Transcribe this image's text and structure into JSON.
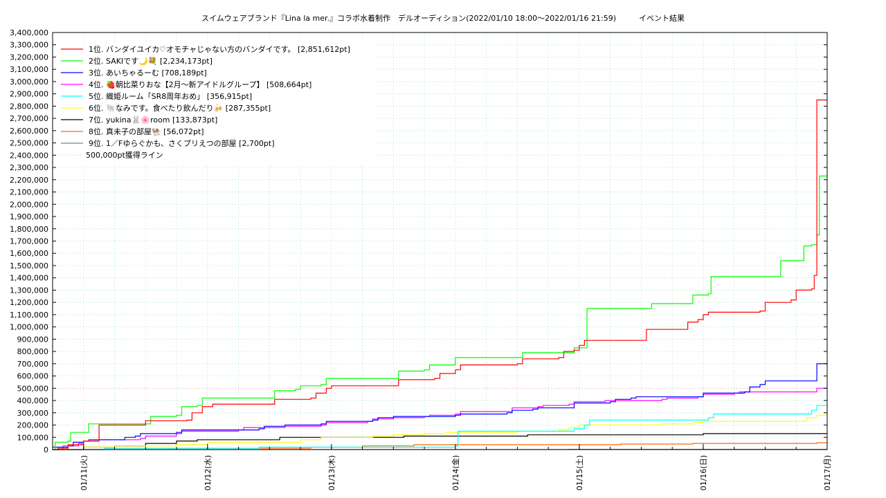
{
  "chart_data": {
    "type": "line",
    "title": "スイムウェアブランド『Lina la mer.』コラボ水着制作　デルオーディション(2022/01/10 18:00〜2022/01/16 21:59)　　　イベント結果",
    "xlabel": "",
    "ylabel": "",
    "ylim": [
      0,
      3400000
    ],
    "yticks": [
      "0",
      "100,000",
      "200,000",
      "300,000",
      "400,000",
      "500,000",
      "600,000",
      "700,000",
      "800,000",
      "900,000",
      "1,000,000",
      "1,100,000",
      "1,200,000",
      "1,300,000",
      "1,400,000",
      "1,500,000",
      "1,600,000",
      "1,700,000",
      "1,800,000",
      "1,900,000",
      "2,000,000",
      "2,100,000",
      "2,200,000",
      "2,300,000",
      "2,400,000",
      "2,500,000",
      "2,600,000",
      "2,700,000",
      "2,800,000",
      "2,900,000",
      "3,000,000",
      "3,100,000",
      "3,200,000",
      "3,300,000",
      "3,400,000"
    ],
    "xlim": [
      "01/10 18:00",
      "01/17 00:00"
    ],
    "xticks": [
      {
        "t": 6,
        "label": "01/11(火)"
      },
      {
        "t": 30,
        "label": "01/12(水)"
      },
      {
        "t": 54,
        "label": "01/13(木)"
      },
      {
        "t": 78,
        "label": "01/14(金)"
      },
      {
        "t": 102,
        "label": "01/15(土)"
      },
      {
        "t": 126,
        "label": "01/16(日)"
      },
      {
        "t": 150,
        "label": "01/17(月)"
      }
    ],
    "grid": true,
    "legend_position": "top-left",
    "reference_line": {
      "label": "500,000pt獲得ライン",
      "value": 500000,
      "color": "#ff9999"
    },
    "series": [
      {
        "name": "1位. バンダイユイカ♡オモチャじゃない方のバンダイです。 [2,851,612pt]",
        "color": "#ff0000",
        "points": [
          [
            0,
            0
          ],
          [
            1,
            10000
          ],
          [
            3,
            40000
          ],
          [
            6,
            70000
          ],
          [
            9,
            200000
          ],
          [
            18,
            235000
          ],
          [
            26,
            240000
          ],
          [
            27,
            300000
          ],
          [
            29,
            350000
          ],
          [
            31,
            370000
          ],
          [
            42,
            370000
          ],
          [
            43,
            410000
          ],
          [
            50,
            420000
          ],
          [
            51,
            460000
          ],
          [
            53,
            500000
          ],
          [
            54,
            520000
          ],
          [
            66,
            520000
          ],
          [
            67,
            570000
          ],
          [
            74,
            580000
          ],
          [
            75,
            620000
          ],
          [
            78,
            650000
          ],
          [
            79,
            690000
          ],
          [
            90,
            700000
          ],
          [
            91,
            740000
          ],
          [
            98,
            750000
          ],
          [
            99,
            800000
          ],
          [
            101,
            810000
          ],
          [
            102,
            850000
          ],
          [
            103,
            890000
          ],
          [
            114,
            890000
          ],
          [
            115,
            980000
          ],
          [
            122,
            980000
          ],
          [
            123,
            1040000
          ],
          [
            125,
            1060000
          ],
          [
            126,
            1100000
          ],
          [
            127,
            1120000
          ],
          [
            137,
            1130000
          ],
          [
            138,
            1200000
          ],
          [
            143,
            1220000
          ],
          [
            144,
            1300000
          ],
          [
            147,
            1310000
          ],
          [
            147.5,
            1420000
          ],
          [
            148,
            2850000
          ],
          [
            150,
            2851612
          ]
        ]
      },
      {
        "name": "2位. SAKIです🌙💐 [2,234,173pt]",
        "color": "#00ff00",
        "points": [
          [
            0,
            0
          ],
          [
            0.5,
            60000
          ],
          [
            3,
            70000
          ],
          [
            3.5,
            140000
          ],
          [
            6,
            140000
          ],
          [
            7,
            210000
          ],
          [
            18,
            210000
          ],
          [
            19,
            270000
          ],
          [
            24,
            280000
          ],
          [
            25,
            350000
          ],
          [
            28,
            360000
          ],
          [
            29,
            420000
          ],
          [
            42,
            420000
          ],
          [
            43,
            480000
          ],
          [
            47,
            490000
          ],
          [
            48,
            520000
          ],
          [
            52,
            530000
          ],
          [
            53,
            580000
          ],
          [
            66,
            580000
          ],
          [
            67,
            640000
          ],
          [
            72,
            650000
          ],
          [
            73,
            690000
          ],
          [
            77,
            690000
          ],
          [
            78,
            750000
          ],
          [
            90,
            750000
          ],
          [
            91,
            790000
          ],
          [
            100,
            790000
          ],
          [
            101,
            830000
          ],
          [
            103,
            830000
          ],
          [
            103.5,
            1150000
          ],
          [
            115,
            1150000
          ],
          [
            116,
            1190000
          ],
          [
            123,
            1190000
          ],
          [
            124,
            1260000
          ],
          [
            127,
            1270000
          ],
          [
            127.5,
            1410000
          ],
          [
            140,
            1410000
          ],
          [
            141,
            1540000
          ],
          [
            145,
            1540000
          ],
          [
            145.5,
            1660000
          ],
          [
            147,
            1670000
          ],
          [
            148,
            1750000
          ],
          [
            148.5,
            2230000
          ],
          [
            150,
            2234173
          ]
        ]
      },
      {
        "name": "3位. あいちゃるーむ [708,189pt]",
        "color": "#0000ff",
        "points": [
          [
            0,
            20000
          ],
          [
            3,
            30000
          ],
          [
            4,
            60000
          ],
          [
            6,
            70000
          ],
          [
            7,
            80000
          ],
          [
            13,
            80000
          ],
          [
            14,
            100000
          ],
          [
            16,
            110000
          ],
          [
            17,
            130000
          ],
          [
            24,
            140000
          ],
          [
            25,
            160000
          ],
          [
            40,
            170000
          ],
          [
            41,
            190000
          ],
          [
            45,
            200000
          ],
          [
            52,
            210000
          ],
          [
            53,
            230000
          ],
          [
            62,
            240000
          ],
          [
            63,
            260000
          ],
          [
            66,
            270000
          ],
          [
            78,
            280000
          ],
          [
            79,
            290000
          ],
          [
            88,
            300000
          ],
          [
            89,
            320000
          ],
          [
            93,
            330000
          ],
          [
            94,
            340000
          ],
          [
            100,
            340000
          ],
          [
            101,
            380000
          ],
          [
            108,
            390000
          ],
          [
            109,
            410000
          ],
          [
            112,
            420000
          ],
          [
            113,
            430000
          ],
          [
            125,
            430000
          ],
          [
            126,
            460000
          ],
          [
            134,
            470000
          ],
          [
            135,
            510000
          ],
          [
            137,
            530000
          ],
          [
            138,
            560000
          ],
          [
            147,
            560000
          ],
          [
            148,
            700000
          ],
          [
            150,
            708189
          ]
        ]
      },
      {
        "name": "4位. 🍓朝比菜りおな【2月〜新アイドルグループ】 [508,664pt]",
        "color": "#ff00ff",
        "points": [
          [
            0,
            0
          ],
          [
            2,
            30000
          ],
          [
            5,
            50000
          ],
          [
            6,
            70000
          ],
          [
            9,
            80000
          ],
          [
            17,
            90000
          ],
          [
            18,
            110000
          ],
          [
            24,
            130000
          ],
          [
            25,
            150000
          ],
          [
            36,
            160000
          ],
          [
            37,
            180000
          ],
          [
            45,
            190000
          ],
          [
            52,
            200000
          ],
          [
            53,
            220000
          ],
          [
            61,
            230000
          ],
          [
            62,
            250000
          ],
          [
            66,
            260000
          ],
          [
            72,
            270000
          ],
          [
            73,
            280000
          ],
          [
            78,
            290000
          ],
          [
            79,
            310000
          ],
          [
            88,
            310000
          ],
          [
            89,
            340000
          ],
          [
            94,
            350000
          ],
          [
            95,
            360000
          ],
          [
            100,
            370000
          ],
          [
            101,
            390000
          ],
          [
            106,
            390000
          ],
          [
            107,
            400000
          ],
          [
            118,
            410000
          ],
          [
            119,
            420000
          ],
          [
            125,
            430000
          ],
          [
            126,
            450000
          ],
          [
            132,
            460000
          ],
          [
            133,
            470000
          ],
          [
            147,
            470000
          ],
          [
            148,
            500000
          ],
          [
            150,
            508664
          ]
        ]
      },
      {
        "name": "5位. 織姫ルーム「SR8周年おめ」 [356,915pt]",
        "color": "#00ffff",
        "points": [
          [
            0,
            0
          ],
          [
            10,
            10000
          ],
          [
            40,
            20000
          ],
          [
            70,
            20000
          ],
          [
            78,
            30000
          ],
          [
            78.5,
            150000
          ],
          [
            100,
            150000
          ],
          [
            101,
            170000
          ],
          [
            103,
            200000
          ],
          [
            104,
            240000
          ],
          [
            126,
            240000
          ],
          [
            127,
            260000
          ],
          [
            128,
            290000
          ],
          [
            145,
            290000
          ],
          [
            147,
            320000
          ],
          [
            148,
            360000
          ],
          [
            150,
            356915
          ]
        ]
      },
      {
        "name": "6位. 🐚なみです。食べたり飲んだり🍻 [287,355pt]",
        "color": "#ffff00",
        "points": [
          [
            0,
            0
          ],
          [
            6,
            20000
          ],
          [
            12,
            30000
          ],
          [
            24,
            40000
          ],
          [
            30,
            60000
          ],
          [
            40,
            60000
          ],
          [
            48,
            80000
          ],
          [
            52,
            100000
          ],
          [
            62,
            110000
          ],
          [
            66,
            120000
          ],
          [
            72,
            130000
          ],
          [
            76,
            140000
          ],
          [
            90,
            150000
          ],
          [
            98,
            160000
          ],
          [
            100,
            180000
          ],
          [
            102,
            200000
          ],
          [
            110,
            200000
          ],
          [
            118,
            210000
          ],
          [
            124,
            220000
          ],
          [
            126,
            230000
          ],
          [
            144,
            230000
          ],
          [
            146,
            260000
          ],
          [
            148,
            280000
          ],
          [
            150,
            287355
          ]
        ]
      },
      {
        "name": "7位. yukina🐰🌸room [133,873pt]",
        "color": "#000000",
        "points": [
          [
            0,
            0
          ],
          [
            6,
            20000
          ],
          [
            12,
            30000
          ],
          [
            18,
            50000
          ],
          [
            24,
            70000
          ],
          [
            28,
            80000
          ],
          [
            42,
            80000
          ],
          [
            44,
            100000
          ],
          [
            66,
            100000
          ],
          [
            68,
            110000
          ],
          [
            90,
            110000
          ],
          [
            92,
            120000
          ],
          [
            120,
            120000
          ],
          [
            126,
            130000
          ],
          [
            150,
            133873
          ]
        ]
      },
      {
        "name": "8位. 真未子の部屋🐏 [56,072pt]",
        "color": "#ff6600",
        "points": [
          [
            0,
            0
          ],
          [
            10,
            10000
          ],
          [
            30,
            10000
          ],
          [
            50,
            20000
          ],
          [
            60,
            30000
          ],
          [
            70,
            40000
          ],
          [
            100,
            40000
          ],
          [
            110,
            45000
          ],
          [
            124,
            50000
          ],
          [
            130,
            50000
          ],
          [
            146,
            50000
          ],
          [
            148,
            56000
          ],
          [
            150,
            56072
          ]
        ]
      },
      {
        "name": "9位. 1／Fゆらぐかも、さくプリえつの部屋 [2,700pt]",
        "color": "#808080",
        "points": [
          [
            0,
            0
          ],
          [
            50,
            1000
          ],
          [
            100,
            2000
          ],
          [
            150,
            2700
          ]
        ]
      }
    ]
  }
}
